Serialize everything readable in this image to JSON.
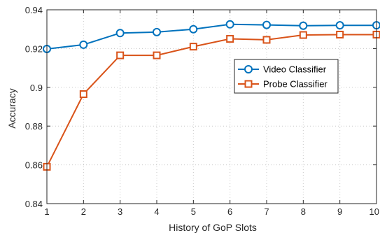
{
  "chart_data": {
    "type": "line",
    "title": "",
    "xlabel": "History of GoP Slots",
    "ylabel": "Accuracy",
    "x": [
      1,
      2,
      3,
      4,
      5,
      6,
      7,
      8,
      9,
      10
    ],
    "xlim": [
      1,
      10
    ],
    "ylim": [
      0.84,
      0.94
    ],
    "xticks": [
      "1",
      "2",
      "3",
      "4",
      "5",
      "6",
      "7",
      "8",
      "9",
      "10"
    ],
    "yticks": [
      {
        "value": 0.84,
        "label": "0.84"
      },
      {
        "value": 0.86,
        "label": "0.86"
      },
      {
        "value": 0.88,
        "label": "0.88"
      },
      {
        "value": 0.9,
        "label": "0.9"
      },
      {
        "value": 0.92,
        "label": "0.92"
      },
      {
        "value": 0.94,
        "label": "0.94"
      }
    ],
    "grid": true,
    "legend_position": "right",
    "series": [
      {
        "name": "Video Classifier",
        "color": "#0072BD",
        "marker": "circle",
        "values": [
          0.9198,
          0.922,
          0.928,
          0.9285,
          0.93,
          0.9325,
          0.9322,
          0.9318,
          0.932,
          0.932
        ]
      },
      {
        "name": "Probe Classifier",
        "color": "#D95319",
        "marker": "square",
        "values": [
          0.859,
          0.8965,
          0.9165,
          0.9165,
          0.921,
          0.925,
          0.9245,
          0.927,
          0.9272,
          0.9272
        ]
      }
    ]
  }
}
